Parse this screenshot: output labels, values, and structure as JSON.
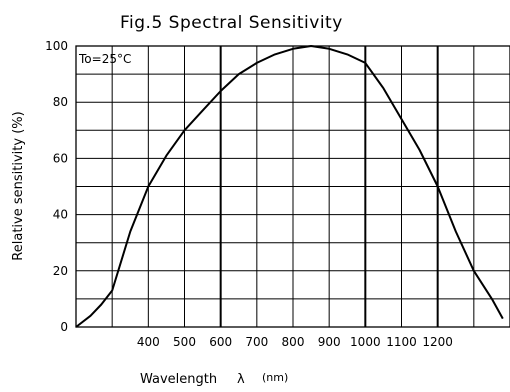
{
  "chart_data": {
    "type": "line",
    "title": "Fig.5  Spectral Sensitivity",
    "ylabel": "Relative sensitivity (%)",
    "xlabel": "Wavelength",
    "xlabel_symbol": "λ",
    "xlabel_unit": "(nm)",
    "annotation": "To=25°C",
    "grid": true,
    "xlim": [
      200,
      1400
    ],
    "ylim": [
      0,
      100
    ],
    "x_ticks": [
      400,
      500,
      600,
      700,
      800,
      900,
      1000,
      1100,
      1200
    ],
    "y_ticks": [
      0,
      20,
      40,
      60,
      80,
      100
    ],
    "series": [
      {
        "x": [
          200,
          240,
          270,
          300,
          350,
          400,
          450,
          500,
          550,
          600,
          650,
          700,
          750,
          800,
          850,
          900,
          950,
          1000,
          1050,
          1100,
          1150,
          1200,
          1250,
          1300,
          1350,
          1380
        ],
        "values": [
          0,
          4,
          8,
          13,
          34,
          50,
          61,
          70,
          77,
          84,
          90,
          94,
          97,
          99,
          100,
          99,
          97,
          94,
          85,
          74,
          63,
          50,
          34,
          20,
          10,
          3
        ]
      }
    ]
  }
}
